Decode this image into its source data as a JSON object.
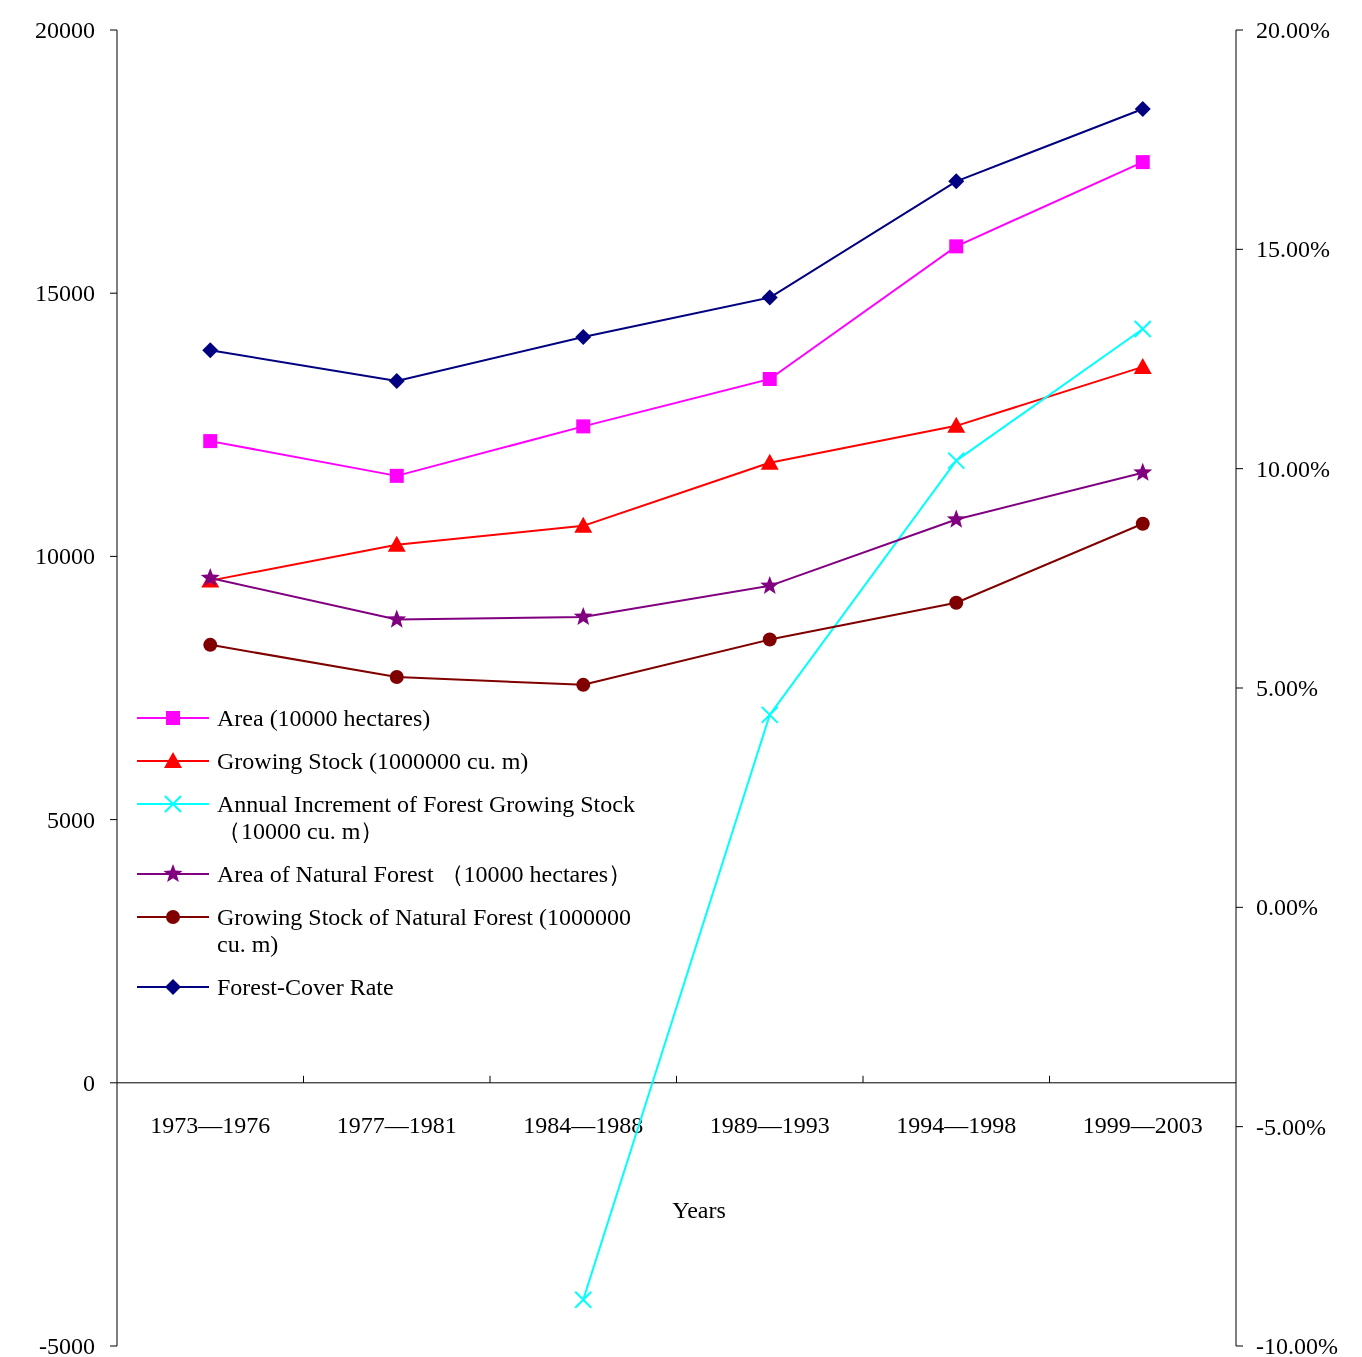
{
  "chart_data": {
    "type": "line",
    "xlabel": "Years",
    "categories": [
      "1973—1976",
      "1977—1981",
      "1984—1988",
      "1989—1993",
      "1994—1998",
      "1999—2003"
    ],
    "series": [
      {
        "name": "Area (10000 hectares)",
        "color": "#ff00ff",
        "marker": "square",
        "values": [
          12190,
          11530,
          12470,
          13370,
          15890,
          17490
        ]
      },
      {
        "name": "Growing Stock (1000000 cu. m)",
        "color": "#ff0000",
        "marker": "triangle",
        "values": [
          9540,
          10220,
          10580,
          11780,
          12480,
          13600
        ]
      },
      {
        "name": "Annual Increment of Forest Growing Stock （10000 cu. m）",
        "color": "#00ffff",
        "marker": "cross",
        "values": [
          null,
          null,
          -4120,
          6990,
          11820,
          14320
        ]
      },
      {
        "name": "Area of Natural Forest （10000 hectares）",
        "color": "#800080",
        "marker": "star",
        "values": [
          9590,
          8800,
          8850,
          9440,
          10700,
          11590
        ]
      },
      {
        "name": "Growing Stock of Natural Forest (1000000 cu. m)",
        "color": "#800000",
        "marker": "circle",
        "values": [
          8320,
          7710,
          7560,
          8420,
          9120,
          10620
        ]
      },
      {
        "name": "Forest-Cover Rate",
        "color": "#000080",
        "marker": "diamond",
        "axis": "y2",
        "values": [
          12.7,
          12.0,
          13.0,
          13.9,
          16.55,
          18.2
        ]
      }
    ],
    "ylim": [
      -5000,
      20000
    ],
    "yticks": [
      -5000,
      0,
      5000,
      10000,
      15000,
      20000
    ],
    "y2lim": [
      -10,
      20
    ],
    "y2ticks": [
      {
        "value": -10,
        "label": "-10.00%"
      },
      {
        "value": -5,
        "label": "-5.00%"
      },
      {
        "value": 0,
        "label": "0.00%"
      },
      {
        "value": 5,
        "label": "5.00%"
      },
      {
        "value": 10,
        "label": "10.00%"
      },
      {
        "value": 15,
        "label": "15.00%"
      },
      {
        "value": 20,
        "label": "20.00%"
      }
    ],
    "grid": false,
    "legend": "left",
    "line_style": "solid"
  }
}
